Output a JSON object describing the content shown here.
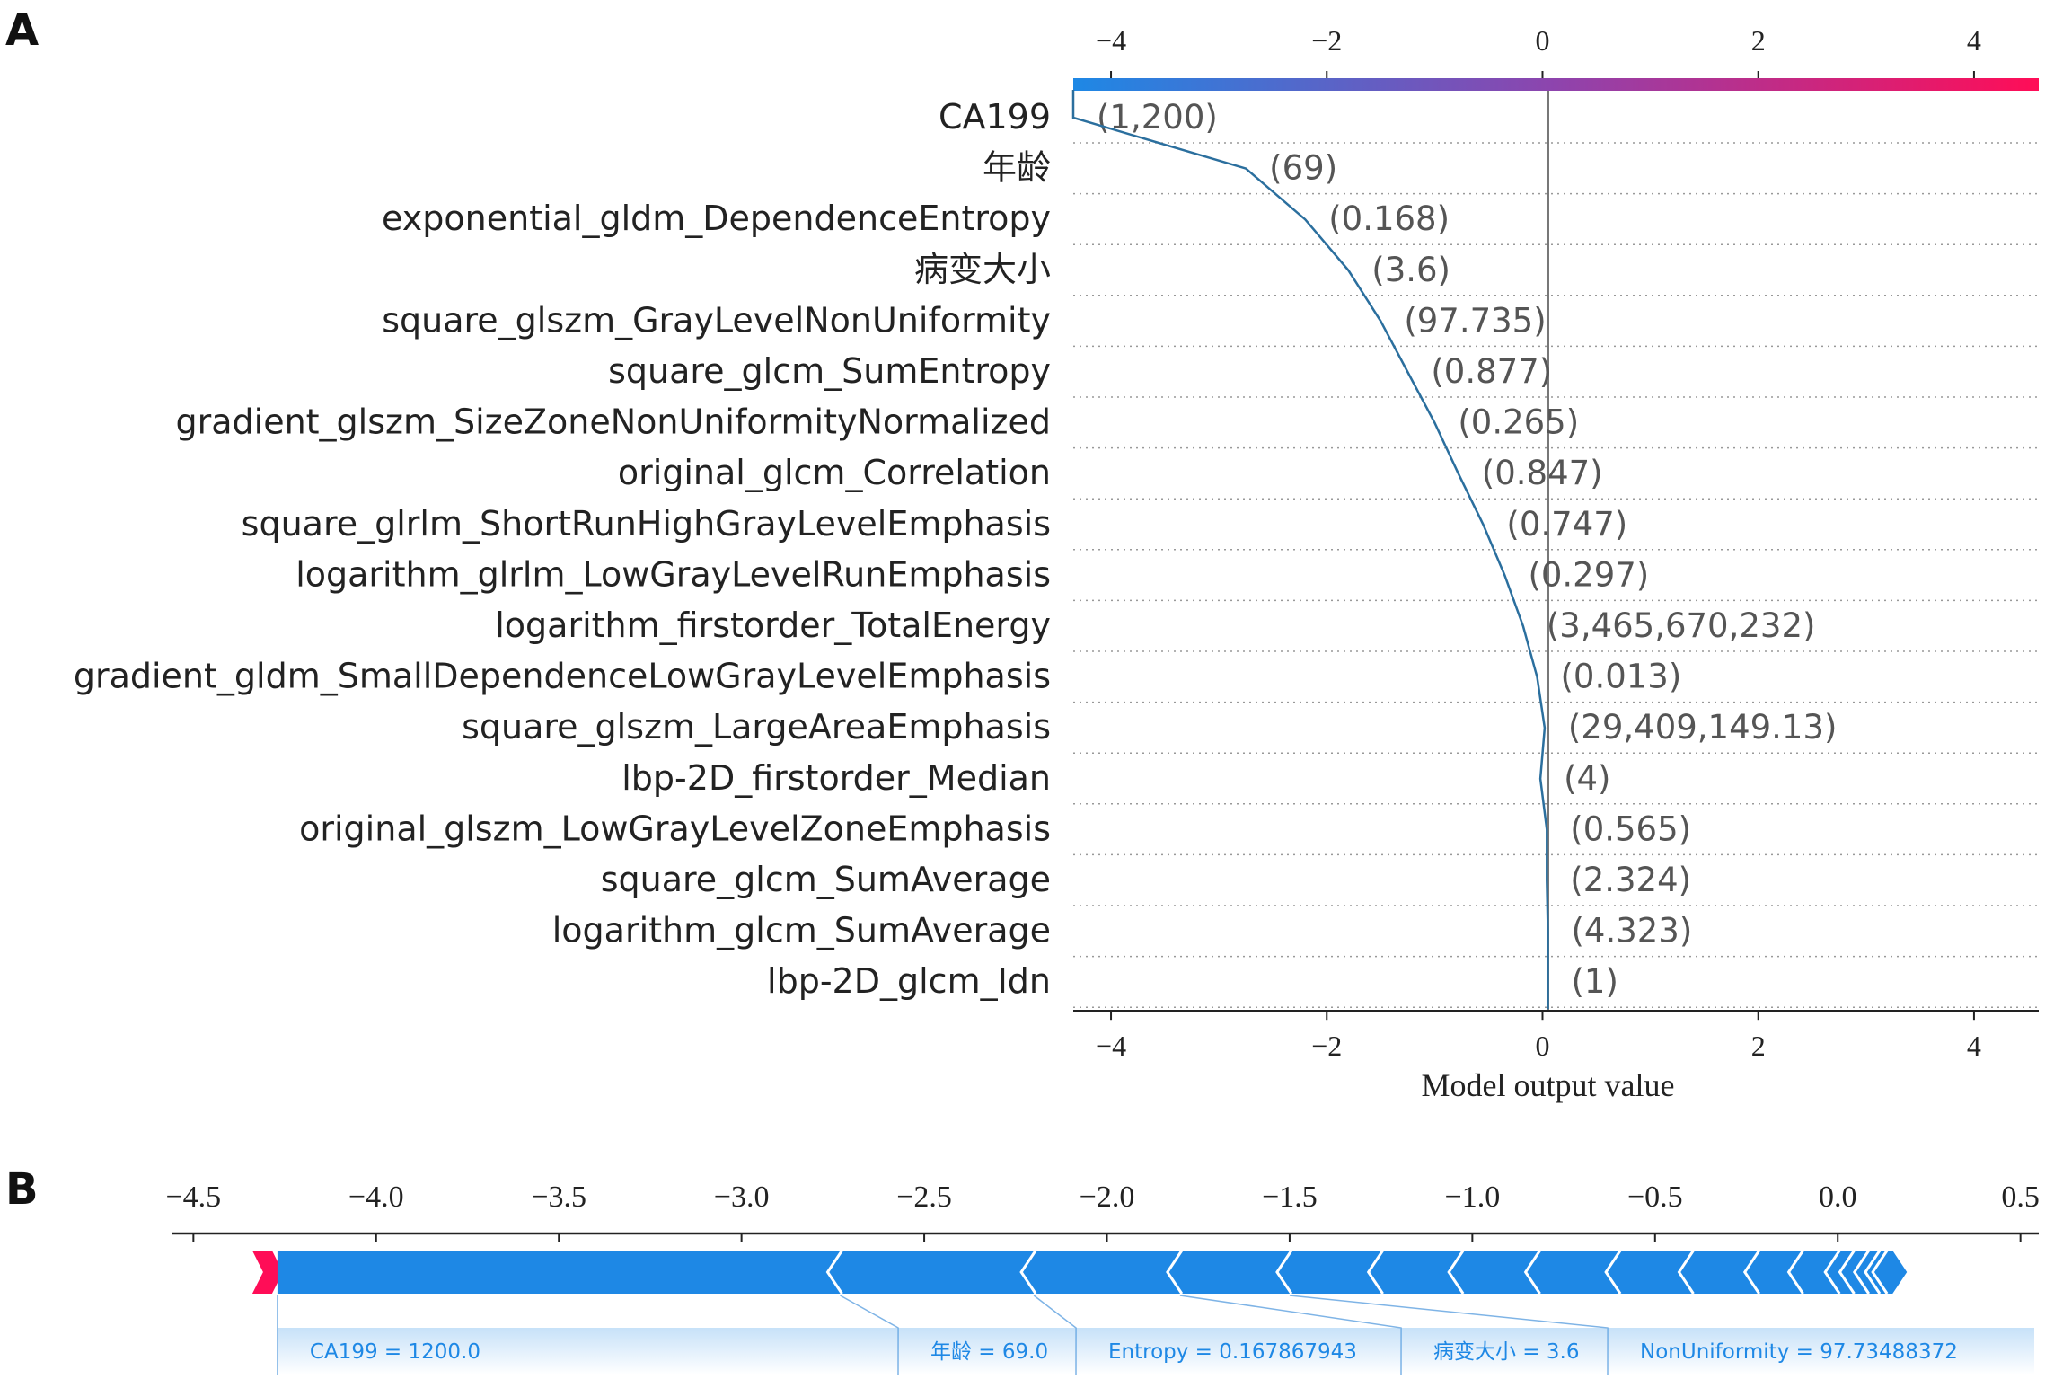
{
  "panel_labels": {
    "a": "A",
    "b": "B"
  },
  "chart_data": [
    {
      "type": "line",
      "subtype": "shap-decision-plot",
      "xlabel": "Model output value",
      "xlim": [
        -4.35,
        4.6
      ],
      "xticks": [
        -4,
        -2,
        0,
        2,
        4
      ],
      "base_value": 0.05,
      "colorbar": {
        "from": "#1e88e5",
        "mid": "#8e44ad",
        "to": "#ff0d57"
      },
      "line_color": "#2b6f9e",
      "grid": "dotted-horizontal",
      "features": [
        {
          "name": "CA199",
          "value_label": "(1,200)",
          "cum_output": -4.35
        },
        {
          "name": "年龄",
          "value_label": "(69)",
          "cum_output": -2.75
        },
        {
          "name": "exponential_gldm_DependenceEntropy",
          "value_label": "(0.168)",
          "cum_output": -2.2
        },
        {
          "name": "病变大小",
          "value_label": "(3.6)",
          "cum_output": -1.8
        },
        {
          "name": "square_glszm_GrayLevelNonUniformity",
          "value_label": "(97.735)",
          "cum_output": -1.5
        },
        {
          "name": "square_glcm_SumEntropy",
          "value_label": "(0.877)",
          "cum_output": -1.25
        },
        {
          "name": "gradient_glszm_SizeZoneNonUniformityNormalized",
          "value_label": "(0.265)",
          "cum_output": -1.0
        },
        {
          "name": "original_glcm_Correlation",
          "value_label": "(0.847)",
          "cum_output": -0.78
        },
        {
          "name": "square_glrlm_ShortRunHighGrayLevelEmphasis",
          "value_label": "(0.747)",
          "cum_output": -0.55
        },
        {
          "name": "logarithm_glrlm_LowGrayLevelRunEmphasis",
          "value_label": "(0.297)",
          "cum_output": -0.35
        },
        {
          "name": "logarithm_firstorder_TotalEnergy",
          "value_label": "(3,465,670,232)",
          "cum_output": -0.18
        },
        {
          "name": "gradient_gldm_SmallDependenceLowGrayLevelEmphasis",
          "value_label": "(0.013)",
          "cum_output": -0.05
        },
        {
          "name": "square_glszm_LargeAreaEmphasis",
          "value_label": "(29,409,149.13)",
          "cum_output": 0.02
        },
        {
          "name": "lbp-2D_firstorder_Median",
          "value_label": "(4)",
          "cum_output": -0.02
        },
        {
          "name": "original_glszm_LowGrayLevelZoneEmphasis",
          "value_label": "(0.565)",
          "cum_output": 0.04
        },
        {
          "name": "square_glcm_SumAverage",
          "value_label": "(2.324)",
          "cum_output": 0.04
        },
        {
          "name": "logarithm_glcm_SumAverage",
          "value_label": "(4.323)",
          "cum_output": 0.05
        },
        {
          "name": "lbp-2D_glcm_Idn",
          "value_label": "(1)",
          "cum_output": 0.05
        }
      ]
    },
    {
      "type": "bar",
      "subtype": "shap-force-plot",
      "xlim": [
        -4.55,
        0.55
      ],
      "xticks": [
        -4.5,
        -4.0,
        -3.5,
        -3.0,
        -2.5,
        -2.0,
        -1.5,
        -1.0,
        -0.5,
        0.0,
        0.5
      ],
      "xtick_labels": [
        "−4.5",
        "−4.0",
        "−3.5",
        "−3.0",
        "−2.5",
        "−2.0",
        "−1.5",
        "−1.0",
        "−0.5",
        "0.0",
        "0.5"
      ],
      "output_value": -4.27,
      "base_value": 0.15,
      "negative_color": "#1e88e5",
      "positive_color": "#ff0d57",
      "segment_edges": [
        -4.27,
        -2.73,
        -2.2,
        -1.8,
        -1.5,
        -1.25,
        -1.03,
        -0.82,
        -0.6,
        -0.4,
        -0.22,
        -0.1,
        0.0,
        0.04,
        0.08,
        0.11,
        0.13,
        0.15
      ],
      "labels": [
        {
          "text": "CA199 = 1200.0",
          "from": -4.27,
          "to": -2.73
        },
        {
          "text": "年龄 = 69.0",
          "from": -2.73,
          "to": -2.2
        },
        {
          "text": "Entropy = 0.167867943",
          "from": -2.2,
          "to": -1.8
        },
        {
          "text": "病变大小 = 3.6",
          "from": -1.8,
          "to": -1.5
        },
        {
          "text": "NonUniformity = 97.73488372",
          "from": -1.5,
          "to": -1.25
        }
      ]
    }
  ]
}
